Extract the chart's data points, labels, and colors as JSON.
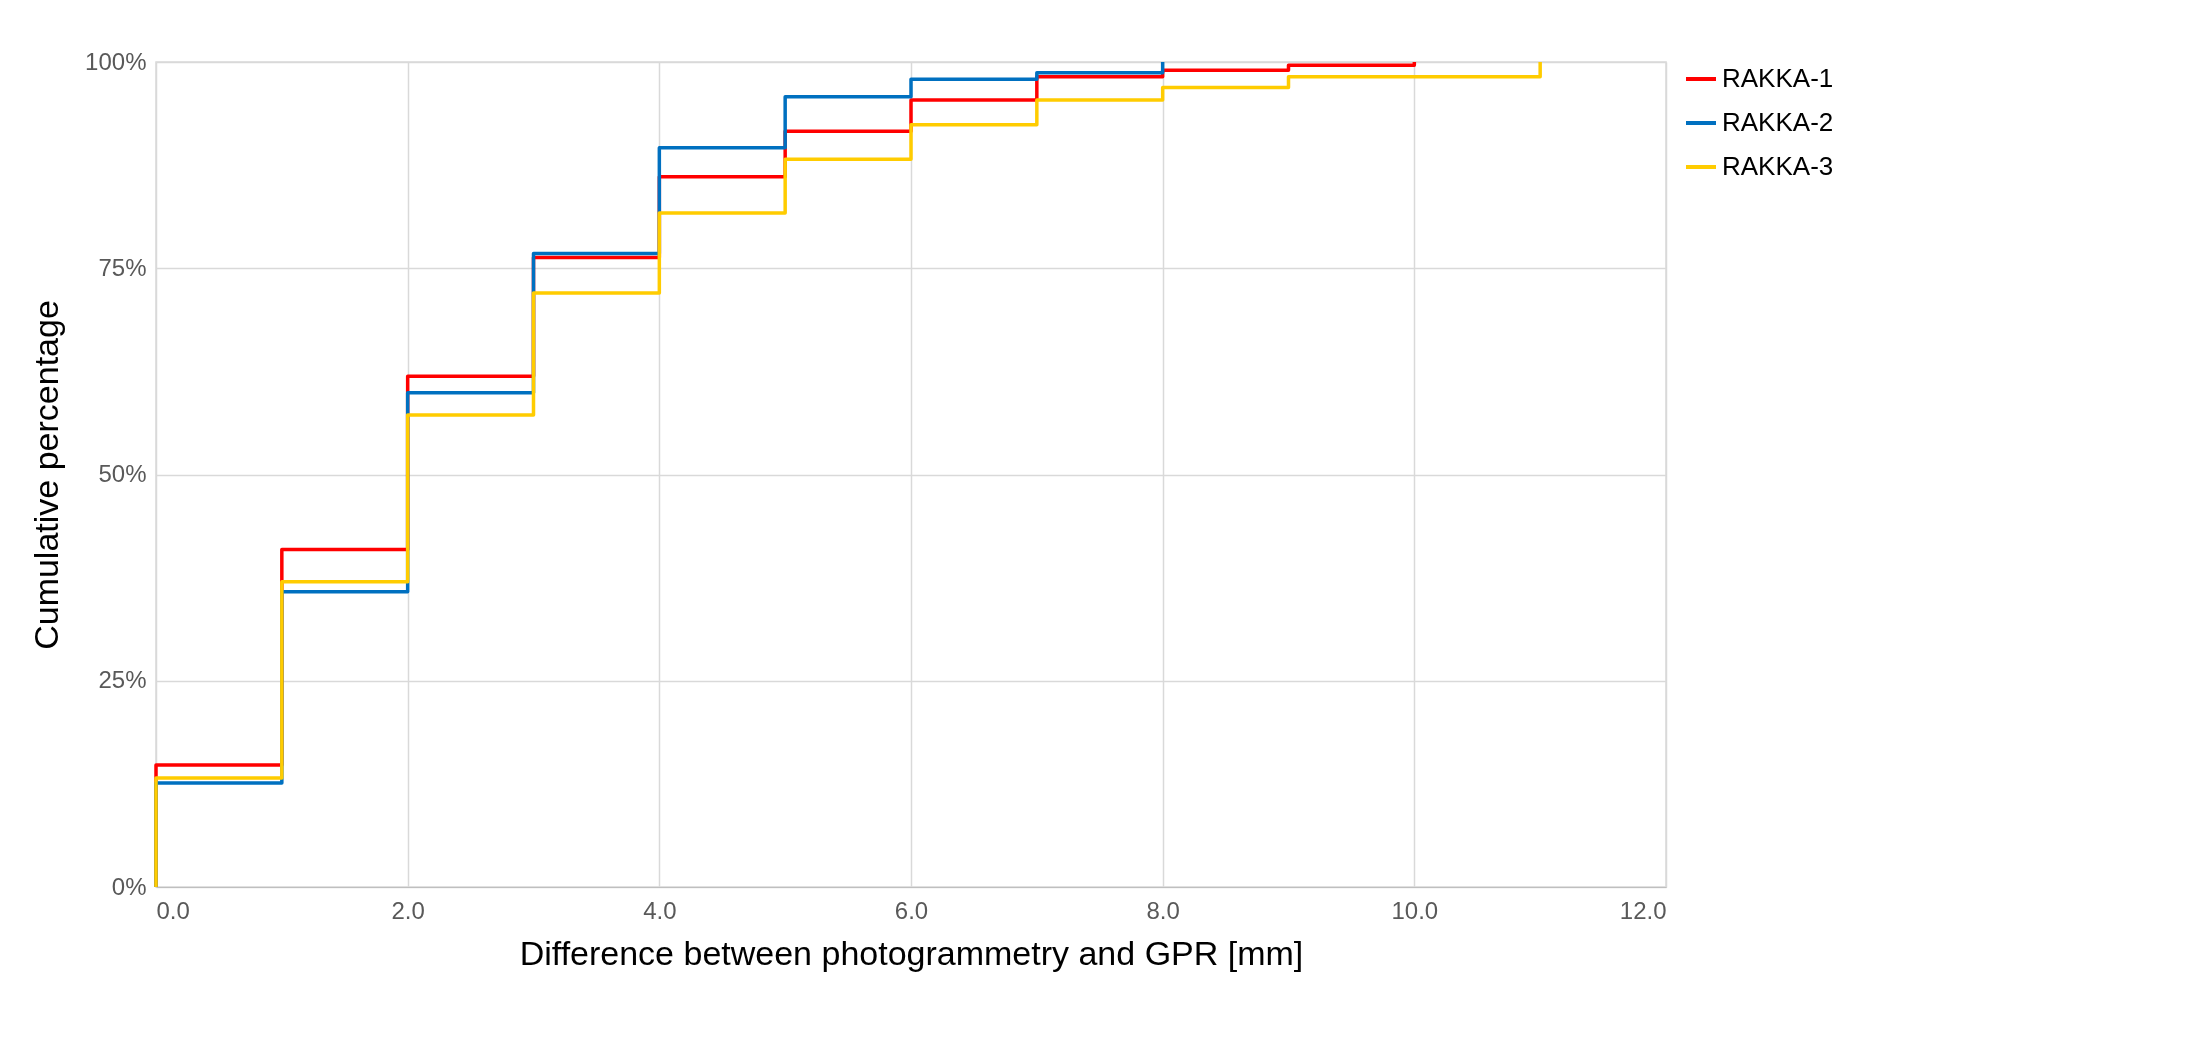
{
  "chart_data": {
    "type": "step",
    "xlabel": "Difference between photogrammetry and GPR [mm]",
    "ylabel": "Cumulative percentage",
    "series": [
      {
        "name": "RAKKA-1",
        "color": "#ff0000",
        "x": [
          0,
          0,
          1,
          2,
          3,
          4,
          5,
          6,
          7,
          8,
          9,
          10
        ],
        "values": [
          0,
          14.8,
          40.9,
          61.9,
          76.3,
          86.1,
          91.6,
          95.4,
          98.2,
          99.0,
          99.6,
          100
        ]
      },
      {
        "name": "RAKKA-2",
        "color": "#0070c0",
        "x": [
          0,
          0,
          1,
          2,
          3,
          4,
          5,
          6,
          7,
          8
        ],
        "values": [
          0,
          12.6,
          35.8,
          59.9,
          76.8,
          89.6,
          95.8,
          97.9,
          98.7,
          100
        ]
      },
      {
        "name": "RAKKA-3",
        "color": "#ffcc00",
        "x": [
          0,
          0,
          1,
          2,
          3,
          4,
          5,
          6,
          7,
          8,
          9,
          11
        ],
        "values": [
          0,
          13.2,
          37.0,
          57.2,
          72.0,
          81.7,
          88.2,
          92.4,
          95.4,
          96.9,
          98.2,
          100
        ]
      }
    ],
    "xlim": [
      0,
      12
    ],
    "ylim": [
      0,
      100
    ],
    "xticks": [
      {
        "value": 0,
        "label": "0.0"
      },
      {
        "value": 2,
        "label": "2.0"
      },
      {
        "value": 4,
        "label": "4.0"
      },
      {
        "value": 6,
        "label": "6.0"
      },
      {
        "value": 8,
        "label": "8.0"
      },
      {
        "value": 10,
        "label": "10.0"
      },
      {
        "value": 12,
        "label": "12.0"
      }
    ],
    "yticks": [
      {
        "value": 0,
        "label": "0%"
      },
      {
        "value": 25,
        "label": "25%"
      },
      {
        "value": 50,
        "label": "50%"
      },
      {
        "value": 75,
        "label": "75%"
      },
      {
        "value": 100,
        "label": "100%"
      }
    ],
    "grid": true,
    "legend": "right",
    "line_style": "solid"
  }
}
